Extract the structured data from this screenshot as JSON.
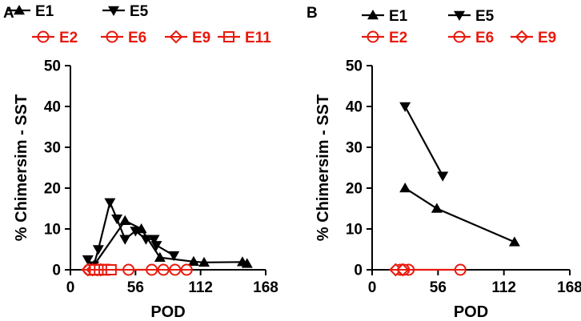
{
  "colors": {
    "black_series": "#000000",
    "red_series": "#e8190d"
  },
  "chart_data": [
    {
      "panel": "A",
      "type": "line",
      "xlabel": "POD",
      "ylabel": "% Chimersim - SST",
      "xlim": [
        0,
        168
      ],
      "ylim": [
        0,
        50
      ],
      "x_ticks": [
        "0",
        "56",
        "112",
        "168"
      ],
      "y_ticks": [
        "0",
        "10",
        "20",
        "30",
        "40",
        "50"
      ],
      "legend": [
        "E1",
        "E5",
        "E2",
        "E6",
        "E9",
        "E11"
      ],
      "series": [
        {
          "name": "E1",
          "marker": "triangle-up",
          "color": "#000000",
          "x": [
            20,
            47,
            61,
            77,
            106,
            115,
            148,
            152
          ],
          "y": [
            1,
            12,
            10,
            3,
            2,
            1.8,
            1.9,
            1.5
          ]
        },
        {
          "name": "E5",
          "marker": "triangle-down",
          "color": "#000000",
          "x": [
            15,
            20,
            24,
            34,
            40,
            47,
            56,
            65,
            72,
            74,
            89
          ],
          "y": [
            2.5,
            1,
            5,
            16.5,
            12.5,
            7.5,
            9.5,
            7.5,
            7.5,
            6,
            3.5
          ]
        },
        {
          "name": "E2",
          "marker": "circle-open",
          "color": "#e8190d",
          "x": [
            16,
            18,
            21,
            24,
            27,
            50,
            70,
            80,
            90,
            100
          ],
          "y": [
            0,
            0,
            0,
            0,
            0,
            0,
            0,
            0,
            0,
            0
          ]
        },
        {
          "name": "E6",
          "marker": "circle-open",
          "color": "#e8190d",
          "x": [
            17,
            22,
            25,
            28,
            31,
            33
          ],
          "y": [
            0,
            0,
            0,
            0,
            0,
            0
          ]
        },
        {
          "name": "E9",
          "marker": "diamond-open",
          "color": "#e8190d",
          "x": [
            15,
            19,
            23,
            26
          ],
          "y": [
            0,
            0,
            0,
            0
          ]
        },
        {
          "name": "E11",
          "marker": "square-open",
          "color": "#e8190d",
          "x": [
            21,
            25,
            29,
            32,
            35
          ],
          "y": [
            0,
            0,
            0,
            0,
            0
          ]
        }
      ]
    },
    {
      "panel": "B",
      "type": "line",
      "xlabel": "POD",
      "ylabel": "% Chimersim - SST",
      "xlim": [
        0,
        168
      ],
      "ylim": [
        0,
        50
      ],
      "x_ticks": [
        "0",
        "56",
        "112",
        "168"
      ],
      "y_ticks": [
        "0",
        "10",
        "20",
        "30",
        "40",
        "50"
      ],
      "legend": [
        "E1",
        "E5",
        "E2",
        "E6",
        "E9"
      ],
      "series": [
        {
          "name": "E1",
          "marker": "triangle-up",
          "color": "#000000",
          "x": [
            28,
            55,
            121
          ],
          "y": [
            20,
            15,
            6.8
          ]
        },
        {
          "name": "E5",
          "marker": "triangle-down",
          "color": "#000000",
          "x": [
            28,
            60
          ],
          "y": [
            40,
            23
          ]
        },
        {
          "name": "E2",
          "marker": "circle-open",
          "color": "#e8190d",
          "x": [
            24,
            31,
            75
          ],
          "y": [
            0,
            0,
            0
          ]
        },
        {
          "name": "E6",
          "marker": "circle-open",
          "color": "#e8190d",
          "x": [
            27
          ],
          "y": [
            0
          ]
        },
        {
          "name": "E9",
          "marker": "diamond-open",
          "color": "#e8190d",
          "x": [
            20,
            26
          ],
          "y": [
            0,
            0
          ]
        }
      ]
    }
  ]
}
